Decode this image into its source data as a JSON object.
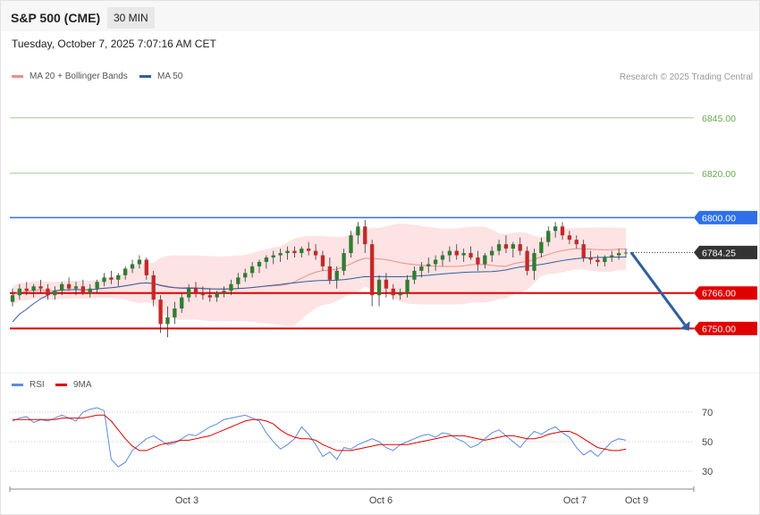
{
  "header": {
    "symbol": "S&P 500 (CME)",
    "timeframe": "30 MIN",
    "datetime": "Tuesday, October 7, 2025 7:07:16 AM CET"
  },
  "legend_main": [
    {
      "label": "MA 20 + Bollinger Bands",
      "color": "#f28b8b"
    },
    {
      "label": "MA 50",
      "color": "#2f5f9e"
    }
  ],
  "legend_rsi": [
    {
      "label": "RSI",
      "color": "#5b8be0"
    },
    {
      "label": "9MA",
      "color": "#e00000"
    }
  ],
  "credit": "Research © 2025 Trading Central",
  "colors": {
    "support": "#e00000",
    "resistance": "#2f6fe8",
    "target": "#6aa84f",
    "arrow": "#2f5f9e",
    "up": "#2f7d32",
    "down": "#c62828"
  },
  "chart_data": [
    {
      "type": "candlestick",
      "ylim": [
        6732,
        6855
      ],
      "levels": [
        {
          "label": "6845.00",
          "value": 6845,
          "kind": "target"
        },
        {
          "label": "6820.00",
          "value": 6820,
          "kind": "target"
        },
        {
          "label": "6800.00",
          "value": 6800,
          "kind": "resistance"
        },
        {
          "label": "6784.25",
          "value": 6784.25,
          "kind": "last"
        },
        {
          "label": "6766.00",
          "value": 6766,
          "kind": "support"
        },
        {
          "label": "6750.00",
          "value": 6750,
          "kind": "support"
        }
      ],
      "forecast": {
        "from": 6784.25,
        "to": 6750
      },
      "x_ticks": [
        "Oct 3",
        "Oct 6",
        "Oct 7",
        "Oct 9"
      ],
      "ohlc": [
        [
          6762,
          6768,
          6760,
          6765
        ],
        [
          6765,
          6770,
          6763,
          6768
        ],
        [
          6768,
          6771,
          6765,
          6767
        ],
        [
          6767,
          6770,
          6764,
          6769
        ],
        [
          6769,
          6772,
          6766,
          6768
        ],
        [
          6768,
          6770,
          6763,
          6765
        ],
        [
          6765,
          6769,
          6763,
          6767
        ],
        [
          6767,
          6771,
          6765,
          6770
        ],
        [
          6770,
          6773,
          6767,
          6768
        ],
        [
          6768,
          6771,
          6765,
          6769
        ],
        [
          6769,
          6772,
          6765,
          6766
        ],
        [
          6766,
          6770,
          6764,
          6768
        ],
        [
          6768,
          6772,
          6766,
          6771
        ],
        [
          6771,
          6775,
          6769,
          6773
        ],
        [
          6773,
          6776,
          6770,
          6772
        ],
        [
          6772,
          6775,
          6769,
          6774
        ],
        [
          6774,
          6778,
          6772,
          6777
        ],
        [
          6777,
          6781,
          6775,
          6779
        ],
        [
          6779,
          6783,
          6777,
          6781
        ],
        [
          6781,
          6782,
          6772,
          6774
        ],
        [
          6774,
          6776,
          6760,
          6763
        ],
        [
          6763,
          6765,
          6748,
          6752
        ],
        [
          6752,
          6760,
          6746,
          6755
        ],
        [
          6755,
          6762,
          6752,
          6759
        ],
        [
          6759,
          6766,
          6757,
          6764
        ],
        [
          6764,
          6770,
          6762,
          6768
        ],
        [
          6768,
          6771,
          6764,
          6766
        ],
        [
          6766,
          6769,
          6763,
          6765
        ],
        [
          6765,
          6768,
          6762,
          6764
        ],
        [
          6764,
          6767,
          6762,
          6766
        ],
        [
          6766,
          6769,
          6764,
          6767
        ],
        [
          6767,
          6772,
          6765,
          6770
        ],
        [
          6770,
          6775,
          6768,
          6773
        ],
        [
          6773,
          6777,
          6771,
          6775
        ],
        [
          6775,
          6780,
          6773,
          6778
        ],
        [
          6778,
          6781,
          6775,
          6780
        ],
        [
          6780,
          6783,
          6777,
          6782
        ],
        [
          6782,
          6785,
          6779,
          6783
        ],
        [
          6783,
          6786,
          6780,
          6784
        ],
        [
          6784,
          6787,
          6781,
          6785
        ],
        [
          6785,
          6787,
          6782,
          6784
        ],
        [
          6784,
          6787,
          6782,
          6786
        ],
        [
          6786,
          6789,
          6783,
          6785
        ],
        [
          6785,
          6788,
          6781,
          6783
        ],
        [
          6783,
          6785,
          6776,
          6778
        ],
        [
          6778,
          6782,
          6770,
          6772
        ],
        [
          6772,
          6778,
          6768,
          6776
        ],
        [
          6776,
          6786,
          6774,
          6784
        ],
        [
          6784,
          6794,
          6782,
          6792
        ],
        [
          6792,
          6798,
          6788,
          6796
        ],
        [
          6796,
          6799,
          6784,
          6788
        ],
        [
          6788,
          6790,
          6760,
          6765
        ],
        [
          6765,
          6774,
          6760,
          6772
        ],
        [
          6772,
          6775,
          6764,
          6768
        ],
        [
          6768,
          6770,
          6763,
          6765
        ],
        [
          6765,
          6768,
          6763,
          6766
        ],
        [
          6766,
          6774,
          6764,
          6772
        ],
        [
          6772,
          6778,
          6770,
          6776
        ],
        [
          6776,
          6780,
          6773,
          6778
        ],
        [
          6778,
          6782,
          6775,
          6779
        ],
        [
          6779,
          6783,
          6776,
          6781
        ],
        [
          6781,
          6785,
          6778,
          6783
        ],
        [
          6783,
          6787,
          6780,
          6785
        ],
        [
          6785,
          6788,
          6781,
          6783
        ],
        [
          6783,
          6786,
          6780,
          6784
        ],
        [
          6784,
          6787,
          6781,
          6782
        ],
        [
          6782,
          6785,
          6776,
          6779
        ],
        [
          6779,
          6784,
          6777,
          6783
        ],
        [
          6783,
          6787,
          6780,
          6785
        ],
        [
          6785,
          6790,
          6783,
          6788
        ],
        [
          6788,
          6792,
          6784,
          6786
        ],
        [
          6786,
          6789,
          6782,
          6788
        ],
        [
          6788,
          6791,
          6783,
          6785
        ],
        [
          6785,
          6787,
          6774,
          6776
        ],
        [
          6776,
          6786,
          6772,
          6784
        ],
        [
          6784,
          6791,
          6782,
          6789
        ],
        [
          6789,
          6796,
          6787,
          6794
        ],
        [
          6794,
          6798,
          6791,
          6796
        ],
        [
          6796,
          6798,
          6790,
          6792
        ],
        [
          6792,
          6794,
          6788,
          6790
        ],
        [
          6790,
          6792,
          6786,
          6788
        ],
        [
          6788,
          6790,
          6780,
          6782
        ],
        [
          6782,
          6785,
          6779,
          6781
        ],
        [
          6781,
          6783,
          6778,
          6780
        ],
        [
          6780,
          6783,
          6778,
          6782
        ],
        [
          6782,
          6785,
          6780,
          6783
        ],
        [
          6783,
          6786,
          6781,
          6784
        ],
        [
          6784,
          6786,
          6782,
          6784.25
        ]
      ]
    },
    {
      "type": "line",
      "series": [
        {
          "name": "RSI",
          "values": [
            64,
            66,
            67,
            63,
            65,
            64,
            66,
            68,
            66,
            64,
            70,
            72,
            73,
            71,
            38,
            33,
            36,
            44,
            48,
            52,
            54,
            51,
            48,
            49,
            52,
            55,
            54,
            57,
            60,
            62,
            65,
            66,
            67,
            68,
            66,
            64,
            56,
            50,
            45,
            48,
            52,
            60,
            55,
            48,
            40,
            43,
            38,
            46,
            45,
            48,
            50,
            52,
            50,
            46,
            44,
            48,
            50,
            52,
            54,
            55,
            53,
            56,
            55,
            52,
            50,
            46,
            48,
            52,
            56,
            58,
            54,
            50,
            46,
            52,
            57,
            55,
            58,
            60,
            56,
            53,
            46,
            41,
            44,
            40,
            45,
            50,
            52,
            51
          ]
        },
        {
          "name": "9MA",
          "values": [
            65,
            65,
            65,
            65,
            65,
            65,
            65,
            66,
            66,
            66,
            66,
            67,
            68,
            68,
            64,
            58,
            52,
            47,
            44,
            44,
            46,
            48,
            49,
            50,
            51,
            51,
            52,
            53,
            54,
            56,
            58,
            60,
            62,
            64,
            65,
            65,
            64,
            62,
            58,
            55,
            53,
            52,
            52,
            51,
            48,
            46,
            44,
            44,
            44,
            45,
            46,
            47,
            48,
            48,
            48,
            48,
            48,
            49,
            50,
            51,
            52,
            53,
            54,
            54,
            54,
            53,
            52,
            51,
            52,
            53,
            54,
            54,
            53,
            52,
            52,
            53,
            55,
            56,
            57,
            57,
            55,
            52,
            49,
            46,
            45,
            44,
            44,
            45
          ]
        }
      ],
      "ylim": [
        22,
        78
      ],
      "y_ticks": [
        30,
        50,
        70
      ]
    }
  ]
}
